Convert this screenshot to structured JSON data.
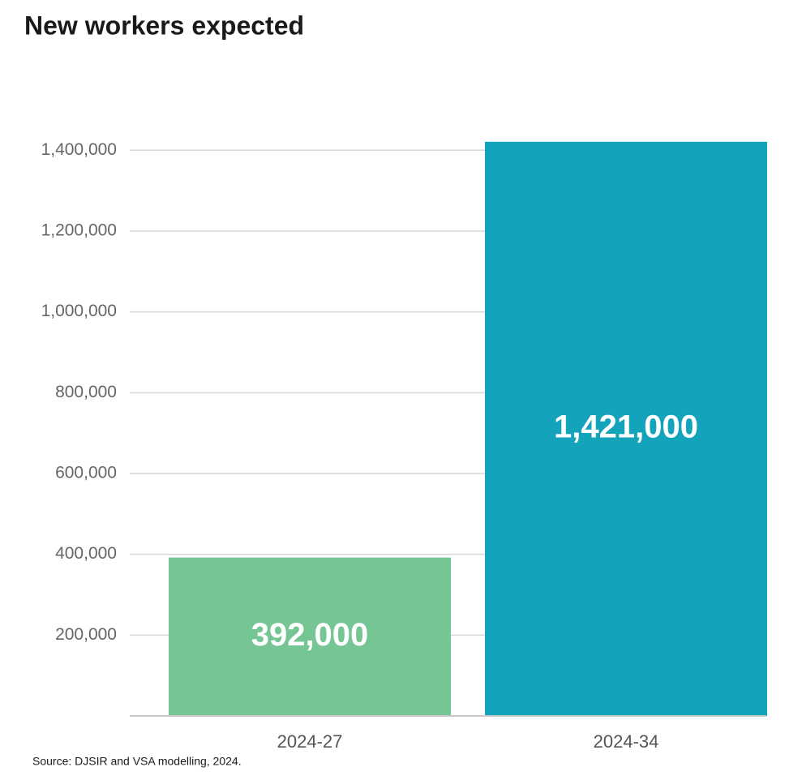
{
  "chart_data": {
    "type": "bar",
    "title": "New workers expected",
    "categories": [
      "2024-27",
      "2024-34"
    ],
    "values": [
      392000,
      1421000
    ],
    "value_labels": [
      "392,000",
      "1,421,000"
    ],
    "colors": [
      "#76c594",
      "#13a3ba"
    ],
    "ylim": [
      0,
      1500000
    ],
    "yticks": [
      {
        "value": 200000,
        "label": "200,000"
      },
      {
        "value": 400000,
        "label": "400,000"
      },
      {
        "value": 600000,
        "label": "600,000"
      },
      {
        "value": 800000,
        "label": "800,000"
      },
      {
        "value": 1000000,
        "label": "1,000,000"
      },
      {
        "value": 1200000,
        "label": "1,200,000"
      },
      {
        "value": 1400000,
        "label": "1,400,000"
      }
    ],
    "grid": true,
    "source": "Source: DJSIR and VSA modelling, 2024."
  }
}
